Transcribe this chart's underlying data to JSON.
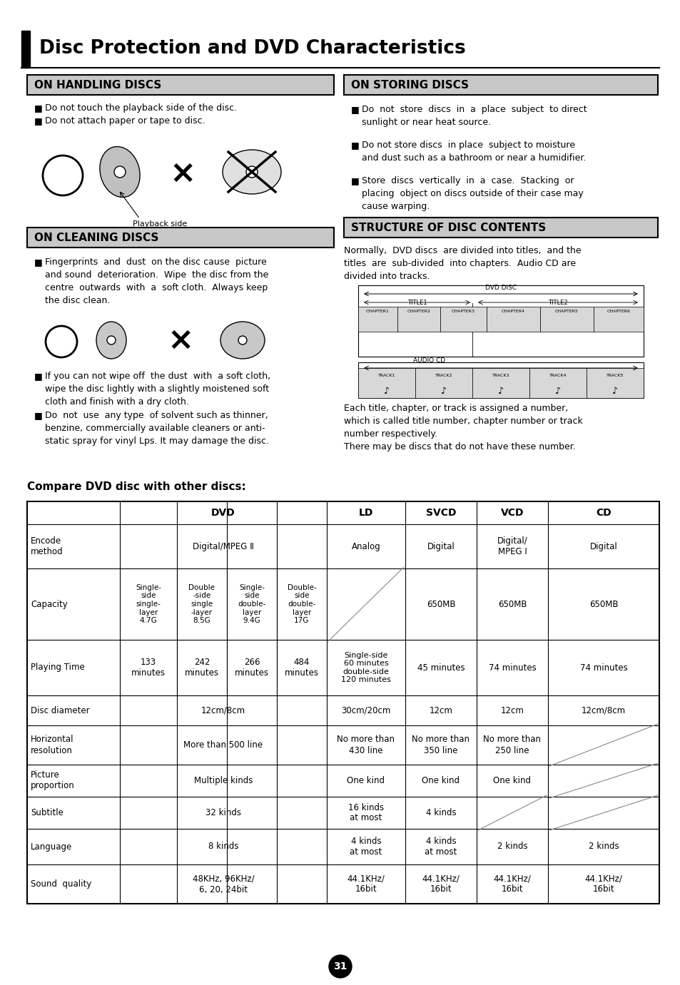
{
  "title": "Disc Protection and DVD Characteristics",
  "page_number": "31",
  "left_panel": {
    "handling_title": "ON HANDLING DISCS",
    "handling_bullets": [
      "Do not touch the playback side of the disc.",
      "Do not attach paper or tape to disc."
    ],
    "playback_side_label": "Playback side",
    "cleaning_title": "ON CLEANING DISCS",
    "cleaning_bullets": [
      "Fingerprints  and  dust  on the disc cause  picture\nand sound  deterioration.  Wipe  the disc from the\ncentre  outwards  with  a  soft cloth.  Always keep\nthe disc clean.",
      "If you can not wipe off  the dust  with  a soft cloth,\nwipe the disc lightly with a slightly moistened soft\ncloth and finish with a dry cloth.",
      "Do  not  use  any type  of solvent such as thinner,\nbenzine, commercially available cleaners or anti-\nstatic spray for vinyl Lps. It may damage the disc."
    ]
  },
  "right_panel": {
    "storing_title": "ON STORING DISCS",
    "storing_bullets": [
      "Do  not  store  discs  in  a  place  subject  to direct\nsunlight or near heat source.",
      "Do not store discs  in place  subject to moisture\nand dust such as a bathroom or near a humidifier.",
      "Store  discs  vertically  in  a  case.  Stacking  or\nplacing  object on discs outside of their case may\ncause warping."
    ],
    "structure_title": "STRUCTURE OF DISC CONTENTS",
    "structure_text1": "Normally,  DVD discs  are divided into titles,  and the\ntitles  are  sub-divided  into chapters.  Audio CD are\ndivided into tracks.",
    "structure_text2": "Each title, chapter, or track is assigned a number,\nwhich is called title number, chapter number or track\nnumber respectively.\nThere may be discs that do not have these number."
  },
  "compare_title": "Compare DVD disc with other discs:",
  "colors": {
    "background": "#ffffff",
    "text": "#000000",
    "box_header_bg": "#c8c8c8",
    "box_border": "#000000",
    "table_border": "#000000",
    "title_bg": "#1a1a1a"
  }
}
